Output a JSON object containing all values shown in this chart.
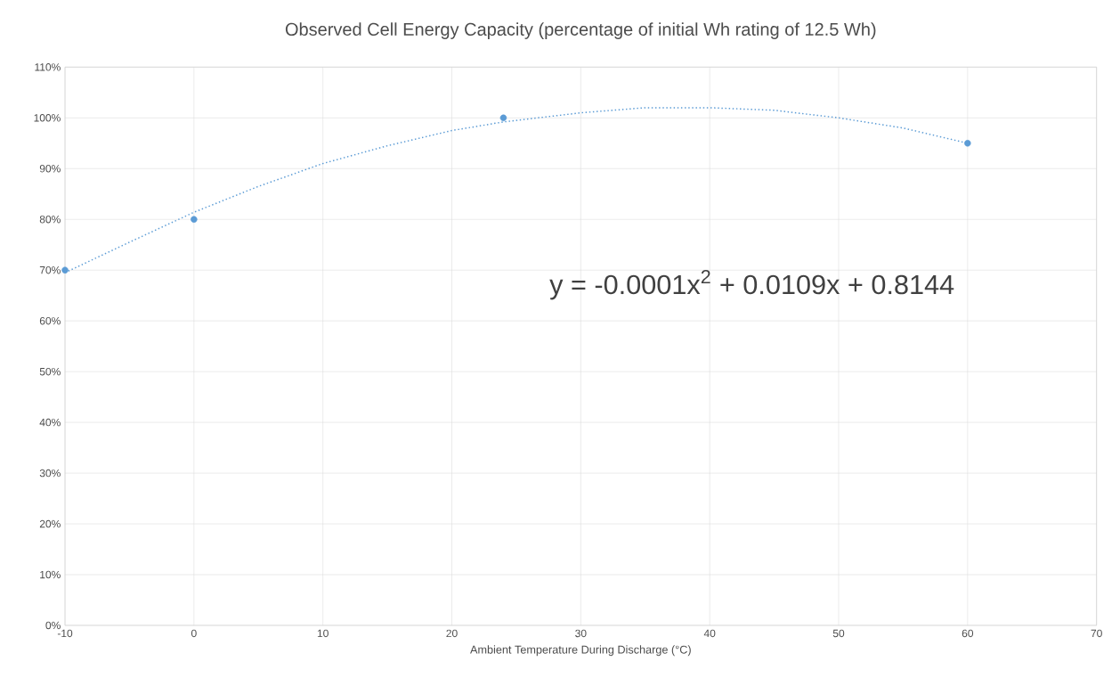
{
  "chart_data": {
    "type": "scatter",
    "title": "Observed Cell Energy Capacity (percentage of initial  Wh rating of 12.5 Wh)",
    "xlabel": "Ambient  Temperature  During Discharge (°C)",
    "series": [
      {
        "color": "#5b9bd5",
        "marker": "circle",
        "x": [
          -10,
          0,
          24,
          60
        ],
        "values": [
          70,
          80,
          100,
          95
        ]
      },
      {
        "type": "line",
        "color": "#5b9bd5",
        "marker": "none",
        "line_style": "dotted",
        "x": [
          -10,
          -5,
          0,
          5,
          10,
          15,
          20,
          24,
          30,
          35,
          40,
          45,
          50,
          55,
          60
        ],
        "values": [
          69.5,
          75.5,
          81.4,
          86.5,
          91,
          94.5,
          97.5,
          99.2,
          101,
          102,
          102,
          101.5,
          100,
          98,
          95
        ]
      }
    ],
    "xlim": [
      -10,
      70
    ],
    "xticks": [
      -10,
      0,
      10,
      20,
      30,
      40,
      50,
      60,
      70
    ],
    "ylim": [
      0,
      110
    ],
    "yticks": [
      {
        "value": 0,
        "label": "0%"
      },
      {
        "value": 10,
        "label": "10%"
      },
      {
        "value": 20,
        "label": "20%"
      },
      {
        "value": 30,
        "label": "30%"
      },
      {
        "value": 40,
        "label": "40%"
      },
      {
        "value": 50,
        "label": "50%"
      },
      {
        "value": 60,
        "label": "60%"
      },
      {
        "value": 70,
        "label": "70%"
      },
      {
        "value": 80,
        "label": "80%"
      },
      {
        "value": 90,
        "label": "90%"
      },
      {
        "value": 100,
        "label": "100%"
      },
      {
        "value": 110,
        "label": "110%"
      }
    ],
    "grid": true,
    "annotations": [
      "y = -0.0001x$^{2}$ + 0.0109x + 0.8144"
    ]
  }
}
